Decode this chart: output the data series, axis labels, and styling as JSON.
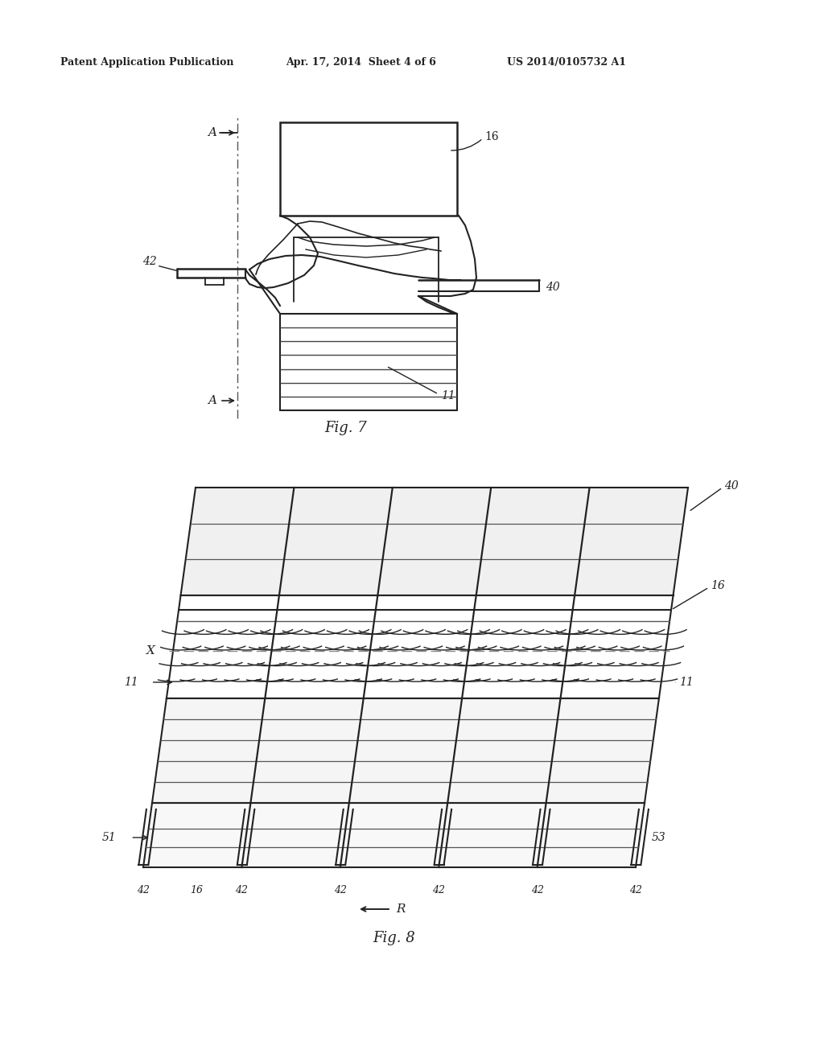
{
  "bg_color": "#ffffff",
  "line_color": "#222222",
  "header_left": "Patent Application Publication",
  "header_mid": "Apr. 17, 2014  Sheet 4 of 6",
  "header_right": "US 2014/0105732 A1",
  "fig7_caption": "Fig. 7",
  "fig8_caption": "Fig. 8"
}
